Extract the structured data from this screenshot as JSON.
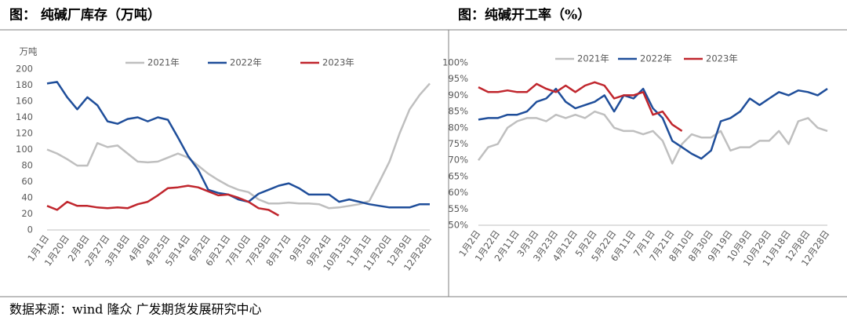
{
  "chart_data": [
    {
      "type": "line",
      "title": "图：  纯碱厂库存（万吨）",
      "y_label": "万吨",
      "categories": [
        "1月1日",
        null,
        "1月20日",
        null,
        "2月8日",
        null,
        "2月27日",
        null,
        "3月18日",
        null,
        "4月6日",
        null,
        "4月25日",
        null,
        "5月14日",
        null,
        "6月2日",
        null,
        "6月21日",
        null,
        "7月10日",
        null,
        "7月29日",
        null,
        "8月17日",
        null,
        "9月5日",
        null,
        "9月24日",
        null,
        "10月13日",
        null,
        "11月1日",
        null,
        "11月20日",
        null,
        "12月9日",
        null,
        "12月28日"
      ],
      "series": [
        {
          "name": "2021年",
          "color": "#bfbfbf",
          "values": [
            100,
            95,
            88,
            80,
            80,
            108,
            103,
            105,
            95,
            85,
            84,
            85,
            90,
            95,
            90,
            80,
            70,
            62,
            55,
            50,
            47,
            38,
            33,
            33,
            34,
            33,
            33,
            32,
            27,
            28,
            30,
            32,
            36,
            60,
            85,
            120,
            150,
            168,
            182
          ]
        },
        {
          "name": "2022年",
          "color": "#1f4e9a",
          "values": [
            182,
            184,
            165,
            150,
            165,
            155,
            135,
            132,
            138,
            140,
            135,
            140,
            137,
            115,
            92,
            75,
            50,
            46,
            44,
            38,
            35,
            45,
            50,
            55,
            58,
            52,
            44,
            44,
            44,
            35,
            38,
            35,
            32,
            30,
            28,
            28,
            28,
            32,
            32
          ]
        },
        {
          "name": "2023年",
          "color": "#c0262d",
          "values": [
            30,
            25,
            35,
            30,
            30,
            28,
            27,
            28,
            27,
            32,
            35,
            43,
            52,
            53,
            55,
            53,
            48,
            43,
            44,
            40,
            35,
            27,
            25,
            18,
            null,
            null,
            null,
            null,
            null,
            null,
            null,
            null,
            null,
            null,
            null,
            null,
            null,
            null,
            null
          ]
        }
      ],
      "ylim": [
        0,
        200
      ],
      "yticks": [
        0,
        20,
        40,
        60,
        80,
        100,
        120,
        140,
        160,
        180,
        200
      ],
      "grid": false
    },
    {
      "type": "line",
      "title": "图：纯碱开工率（%）",
      "categories": [
        "1月2日",
        null,
        "1月22日",
        null,
        "2月11日",
        null,
        "3月3日",
        null,
        "3月23日",
        null,
        "4月12日",
        null,
        "5月2日",
        null,
        "5月22日",
        null,
        "6月11日",
        null,
        "7月1日",
        null,
        "7月21日",
        null,
        "8月10日",
        null,
        "8月30日",
        null,
        "9月19日",
        null,
        "10月9日",
        null,
        "10月29日",
        null,
        "11月18日",
        null,
        "12月8日",
        null,
        "12月28日"
      ],
      "series": [
        {
          "name": "2021年",
          "color": "#bfbfbf",
          "values": [
            70,
            74,
            75,
            80,
            82,
            83,
            83,
            82,
            84,
            83,
            84,
            83,
            85,
            84,
            80,
            79,
            79,
            78,
            79,
            76,
            69,
            75,
            78,
            77,
            77,
            79,
            73,
            74,
            74,
            76,
            76,
            79,
            75,
            82,
            83,
            80,
            79
          ]
        },
        {
          "name": "2022年",
          "color": "#1f4e9a",
          "values": [
            82.5,
            83,
            83,
            84,
            84,
            85,
            88,
            89,
            92,
            88,
            86,
            87,
            88,
            90,
            85,
            90,
            89,
            92,
            86,
            83,
            76,
            74,
            72,
            70.5,
            73,
            82,
            83,
            85,
            89,
            87,
            89,
            91,
            90,
            91.5,
            91,
            90,
            92
          ]
        },
        {
          "name": "2023年",
          "color": "#c0262d",
          "values": [
            92.5,
            91,
            91,
            91.5,
            91,
            91,
            93.5,
            92,
            91,
            93,
            91,
            93,
            94,
            93,
            89,
            90,
            90,
            91,
            84,
            85,
            81,
            79,
            null,
            null,
            null,
            null,
            null,
            null,
            null,
            null,
            null,
            null,
            null,
            null,
            null,
            null,
            null
          ]
        }
      ],
      "ylim": [
        50,
        100
      ],
      "yticks": [
        {
          "value": 50,
          "label": "50%"
        },
        {
          "value": 55,
          "label": "55%"
        },
        {
          "value": 60,
          "label": "60%"
        },
        {
          "value": 65,
          "label": "65%"
        },
        {
          "value": 70,
          "label": "70%"
        },
        {
          "value": 75,
          "label": "75%"
        },
        {
          "value": 80,
          "label": "80%"
        },
        {
          "value": 85,
          "label": "85%"
        },
        {
          "value": 90,
          "label": "90%"
        },
        {
          "value": 95,
          "label": "95%"
        },
        {
          "value": 100,
          "label": "100%"
        }
      ],
      "grid": false
    }
  ],
  "source": "数据来源：wind 隆众 广发期货发展研究中心"
}
